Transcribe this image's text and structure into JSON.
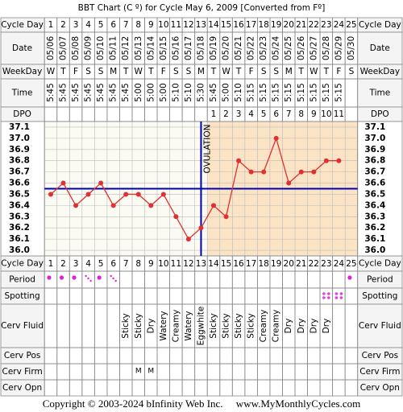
{
  "chart_data": {
    "type": "line",
    "title": "BBT Chart (C º) for Cycle May 6, 2009  [Converted from Fº]",
    "labels": {
      "cycle_day": "Cycle Day",
      "date": "Date",
      "weekday": "WeekDay",
      "time": "Time",
      "dpo": "DPO",
      "period": "Period",
      "spotting": "Spotting",
      "cerv_fluid": "Cerv Fluid",
      "cerv_pos": "Cerv Pos",
      "cerv_firm": "Cerv Firm",
      "cerv_opn": "Cerv Opn"
    },
    "cycle_days": [
      1,
      2,
      3,
      4,
      5,
      6,
      7,
      8,
      9,
      10,
      11,
      12,
      13,
      14,
      15,
      16,
      17,
      18,
      19,
      20,
      21,
      22,
      23,
      24,
      25
    ],
    "dates": [
      "05/06",
      "05/07",
      "05/08",
      "05/09",
      "05/10",
      "05/11",
      "05/12",
      "05/13",
      "05/14",
      "05/15",
      "05/16",
      "05/17",
      "05/18",
      "05/19",
      "05/20",
      "05/21",
      "05/22",
      "05/23",
      "05/24",
      "05/25",
      "05/26",
      "05/27",
      "05/28",
      "05/29",
      "05/30"
    ],
    "weekdays": [
      "W",
      "T",
      "F",
      "S",
      "S",
      "M",
      "T",
      "W",
      "T",
      "F",
      "S",
      "S",
      "M",
      "T",
      "W",
      "T",
      "F",
      "S",
      "S",
      "M",
      "T",
      "W",
      "T",
      "F",
      "S"
    ],
    "times": [
      "5:45",
      "5:45",
      "5:45",
      "5:45",
      "5:45",
      "5:45",
      "5:45",
      "5:00",
      "5:00",
      "5:00",
      "5:10",
      "5:10",
      "5:30",
      "5:45",
      "5:00",
      "5:10",
      "5:15",
      "5:15",
      "5:15",
      "5:15",
      "5:15",
      "5:15",
      "5:15",
      "5:15",
      null
    ],
    "dpo": [
      null,
      null,
      null,
      null,
      null,
      null,
      null,
      null,
      null,
      null,
      null,
      null,
      null,
      1,
      2,
      3,
      4,
      5,
      6,
      7,
      8,
      9,
      10,
      11,
      null
    ],
    "values": [
      36.5,
      36.6,
      36.4,
      36.5,
      36.6,
      36.4,
      36.5,
      36.5,
      36.4,
      36.5,
      36.3,
      36.1,
      36.2,
      36.4,
      36.3,
      36.8,
      36.7,
      36.7,
      37.0,
      36.6,
      36.7,
      36.7,
      36.8,
      36.8,
      null
    ],
    "color": "#e03030",
    "ylim": [
      35.95,
      37.15
    ],
    "yticks": [
      {
        "value": 37,
        "label": "37.0"
      },
      37.1,
      36.9,
      36.8,
      36.7,
      36.6,
      36.5,
      36.4,
      36.3,
      36.2,
      36.1,
      {
        "value": 36,
        "label": "36.0"
      }
    ],
    "grid": true,
    "coverline": 36.55,
    "coverline_color": "#0000aa",
    "ovulation_day": 13,
    "ovulation_label": "OVULATION",
    "period": [
      "heavy",
      "heavy",
      "heavy",
      "light",
      "heavy",
      "light",
      null,
      null,
      null,
      null,
      null,
      null,
      null,
      null,
      null,
      null,
      null,
      null,
      null,
      null,
      null,
      null,
      null,
      null,
      "heavy"
    ],
    "spotting": [
      false,
      false,
      false,
      false,
      false,
      false,
      false,
      false,
      false,
      false,
      false,
      false,
      false,
      false,
      false,
      false,
      false,
      false,
      false,
      false,
      false,
      false,
      true,
      true,
      false
    ],
    "cerv_fluid": [
      null,
      null,
      null,
      null,
      null,
      null,
      "Sticky",
      "Sticky",
      "Dry",
      "Watery",
      "Creamy",
      "Watery",
      "Eggwhite",
      "Sticky",
      "Sticky",
      "Sticky",
      "Sticky",
      "Creamy",
      "Creamy",
      "Dry",
      "Dry",
      "Dry",
      "Dry",
      null,
      null
    ],
    "cerv_firm": [
      null,
      null,
      null,
      null,
      null,
      null,
      null,
      "M",
      "M",
      null,
      null,
      null,
      null,
      null,
      null,
      null,
      null,
      null,
      null,
      null,
      null,
      null,
      null,
      null,
      null
    ],
    "footer": "Copyright © 2003-2024 bInfinity Web Inc.     www.MyMonthlyCycles.com"
  }
}
